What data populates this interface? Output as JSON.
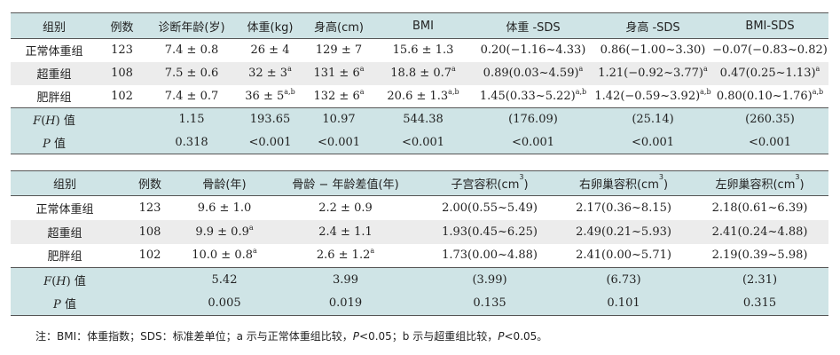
{
  "table1": {
    "headers": [
      "组别",
      "例数",
      "诊断年龄(岁)",
      "体重(kg)",
      "身高(cm)",
      "BMI",
      "体重 -SDS",
      "身高 -SDS",
      "BMI-SDS"
    ],
    "rows": [
      {
        "group": "正常体重组",
        "n": "123",
        "age": "7.4 ± 0.8",
        "weight": "26 ± 4",
        "weight_sup": "",
        "height": "129 ± 7",
        "height_sup": "",
        "bmi": "15.6 ± 1.3",
        "bmi_sup": "",
        "weight_sds": "0.20(−1.16~4.33)",
        "weight_sds_sup": "",
        "height_sds": "0.86(−1.00~3.30)",
        "height_sds_sup": "",
        "bmi_sds": "−0.07(−0.83~0.82)",
        "bmi_sds_sup": ""
      },
      {
        "group": "超重组",
        "n": "108",
        "age": "7.5 ± 0.6",
        "weight": "32 ± 3",
        "weight_sup": "a",
        "height": "131 ± 6",
        "height_sup": "a",
        "bmi": "18.8 ± 0.7",
        "bmi_sup": "a",
        "weight_sds": "0.89(0.03~4.59)",
        "weight_sds_sup": "a",
        "height_sds": "1.21(−0.92~3.77)",
        "height_sds_sup": "a",
        "bmi_sds": "0.47(0.25~1.13)",
        "bmi_sds_sup": "a"
      },
      {
        "group": "肥胖组",
        "n": "102",
        "age": "7.4 ± 0.7",
        "weight": "36 ± 5",
        "weight_sup": "a,b",
        "height": "132 ± 6",
        "height_sup": "a",
        "bmi": "20.6 ± 1.3",
        "bmi_sup": "a,b",
        "weight_sds": "1.45(0.33~5.22)",
        "weight_sds_sup": "a,b",
        "height_sds": "1.42(−0.59~3.92)",
        "height_sds_sup": "a,b",
        "bmi_sds": "0.80(0.10~1.76)",
        "bmi_sds_sup": "a,b"
      }
    ],
    "f_row": {
      "label_stat": "F",
      "label_paren": "H",
      "label_suffix": "值",
      "age": "1.15",
      "weight": "193.65",
      "height": "10.97",
      "bmi": "544.38",
      "weight_sds": "(176.09)",
      "height_sds": "(25.14)",
      "bmi_sds": "(260.35)"
    },
    "p_row": {
      "label_stat": "P",
      "label_suffix": "值",
      "age": "0.318",
      "weight": "<0.001",
      "height": "<0.001",
      "bmi": "<0.001",
      "weight_sds": "<0.001",
      "height_sds": "<0.001",
      "bmi_sds": "<0.001"
    }
  },
  "table2": {
    "headers": [
      "组别",
      "例数",
      "骨龄(年)",
      "骨龄 − 年龄差值(年)",
      "子宫容积(cm",
      "右卵巢容积(cm",
      "左卵巢容积(cm"
    ],
    "unit_sup": "3",
    "unit_close": ")",
    "rows": [
      {
        "group": "正常体重组",
        "n": "123",
        "bone_age": "9.6 ± 1.0",
        "bone_age_sup": "",
        "diff": "2.2 ± 0.9",
        "diff_sup": "",
        "uterus": "2.00(0.55~5.49)",
        "right_ovary": "2.17(0.36~8.15)",
        "left_ovary": "2.18(0.61~6.39)"
      },
      {
        "group": "超重组",
        "n": "108",
        "bone_age": "9.9 ± 0.9",
        "bone_age_sup": "a",
        "diff": "2.4 ± 1.1",
        "diff_sup": "",
        "uterus": "1.93(0.45~6.25)",
        "right_ovary": "2.49(0.21~5.93)",
        "left_ovary": "2.41(0.24~4.88)"
      },
      {
        "group": "肥胖组",
        "n": "102",
        "bone_age": "10.0 ± 0.8",
        "bone_age_sup": "a",
        "diff": "2.6 ± 1.2",
        "diff_sup": "a",
        "uterus": "1.73(0.00~4.88)",
        "right_ovary": "2.41(0.00~5.71)",
        "left_ovary": "2.19(0.39~5.98)"
      }
    ],
    "f_row": {
      "label_stat": "F",
      "label_paren": "H",
      "label_suffix": "值",
      "bone_age": "5.42",
      "diff": "3.99",
      "uterus": "(3.99)",
      "right_ovary": "(6.73)",
      "left_ovary": "(2.31)"
    },
    "p_row": {
      "label_stat": "P",
      "label_suffix": "值",
      "bone_age": "0.005",
      "diff": "0.019",
      "uterus": "0.135",
      "right_ovary": "0.101",
      "left_ovary": "0.315"
    }
  },
  "note": {
    "part1": "注：BMI：体重指数；SDS：标准差单位；a 示与正常体重组比较，",
    "p1": "P",
    "part2": "<0.05；b 示与超重组比较，",
    "p2": "P",
    "part3": "<0.05。"
  },
  "colors": {
    "header_bg": "#cfe4e6",
    "stat_bg": "#cfe4e6",
    "alt_row_bg": "#ececec"
  }
}
